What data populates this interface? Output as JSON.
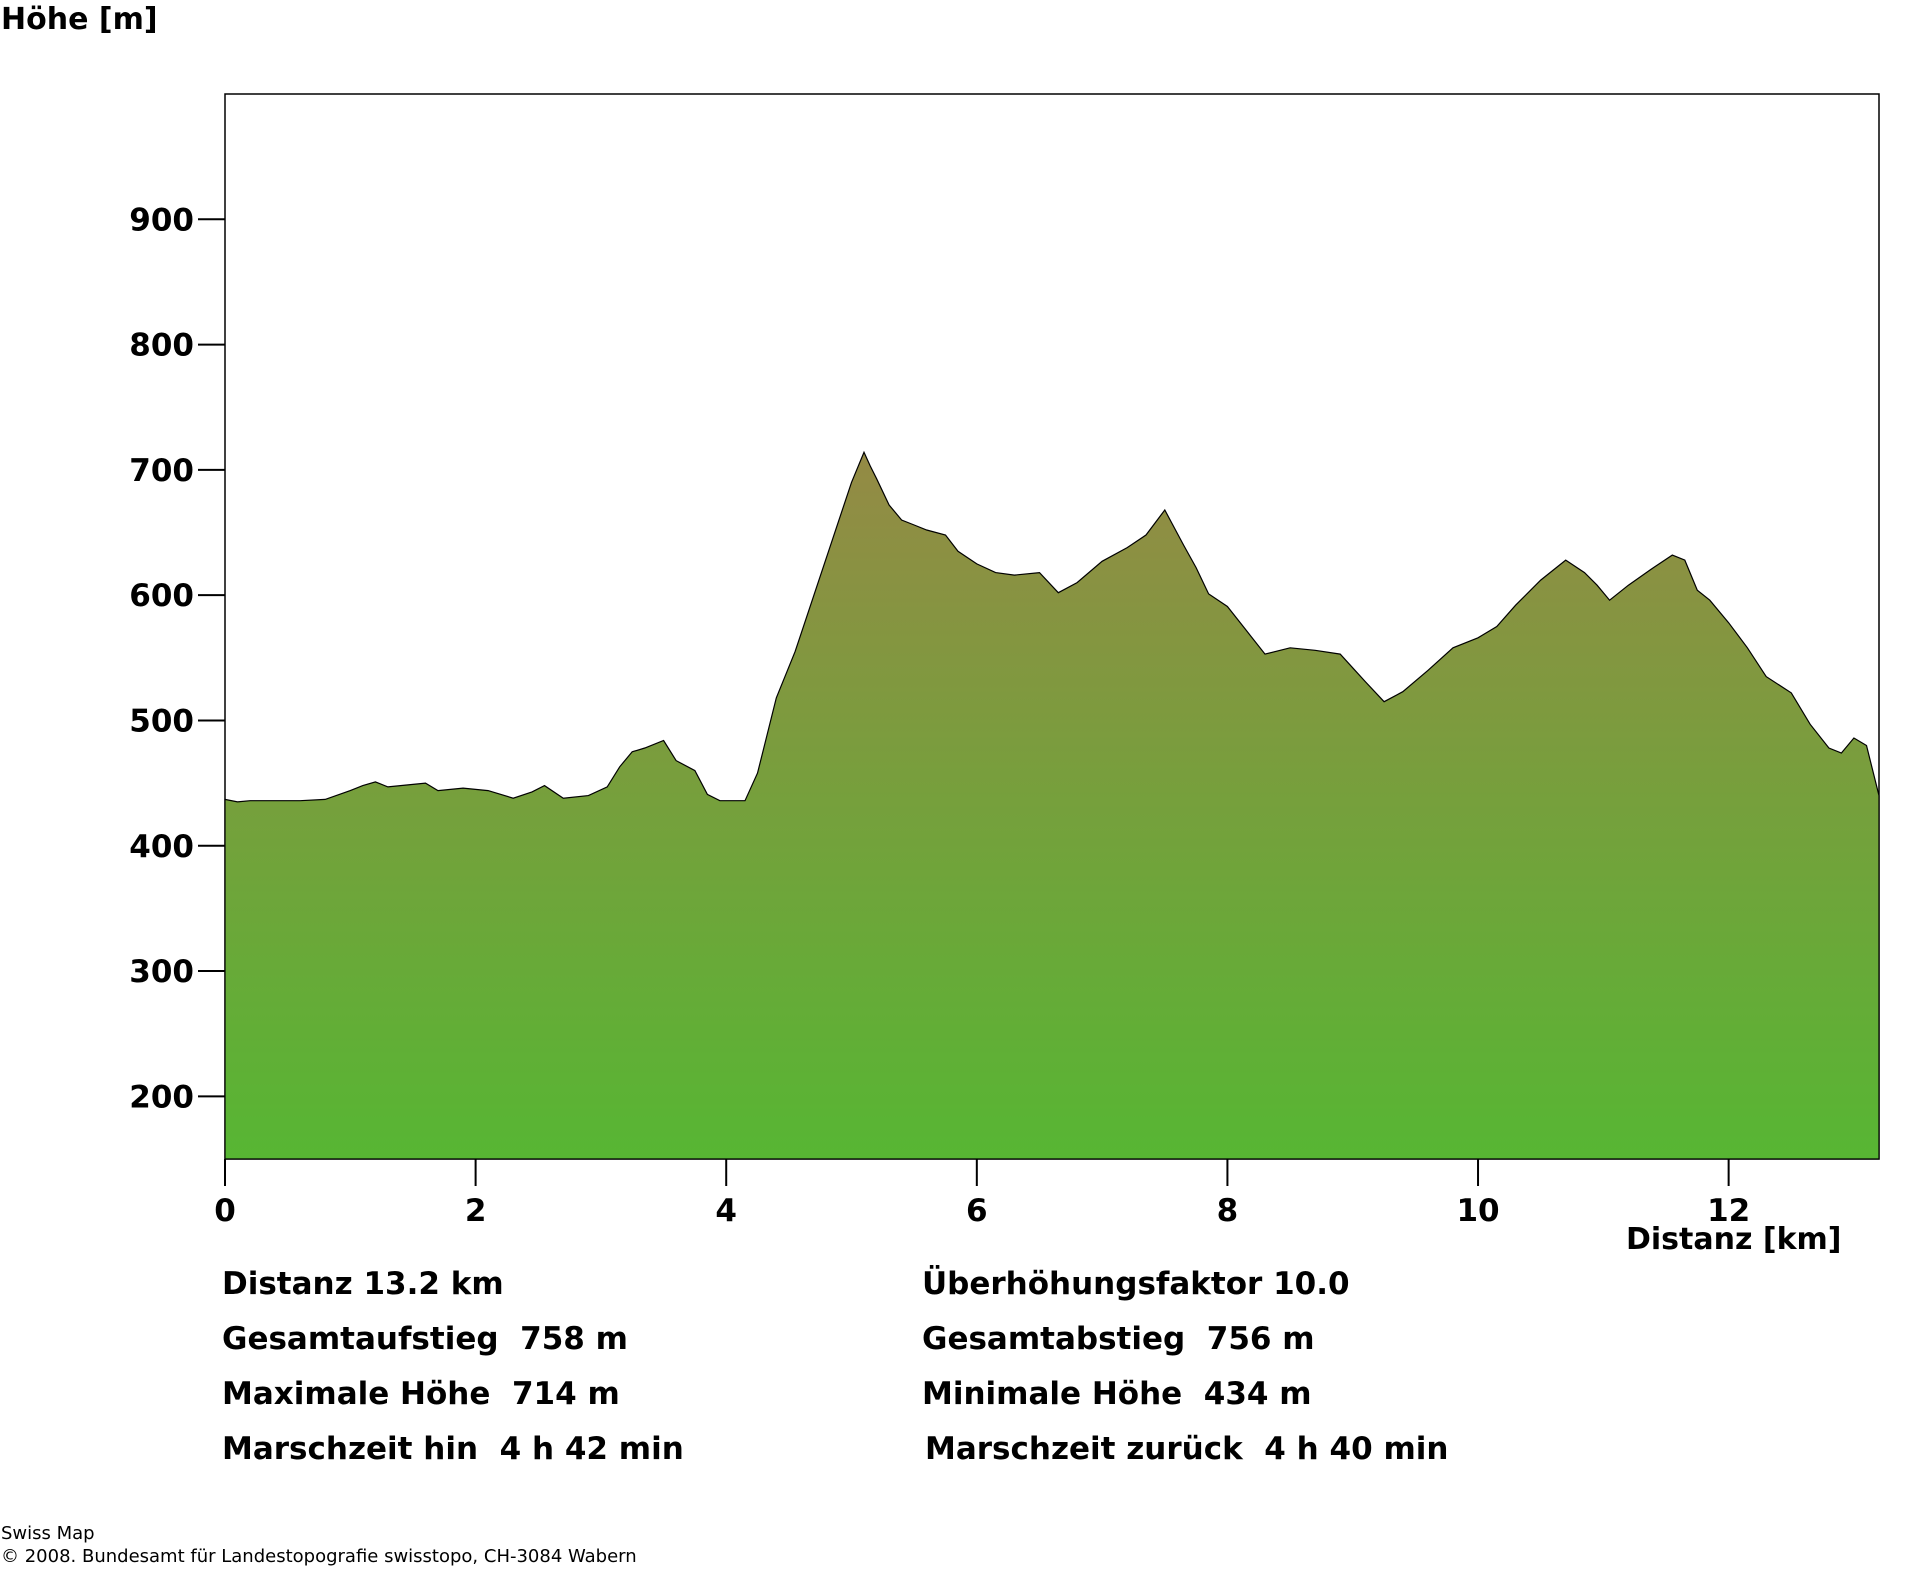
{
  "chart_data": {
    "type": "area",
    "ylabel": "Höhe [m]",
    "xlabel": "Distanz [km]",
    "xlim": [
      0,
      13.2
    ],
    "ylim": [
      150,
      1000
    ],
    "yticks": [
      200,
      300,
      400,
      500,
      600,
      700,
      800,
      900
    ],
    "xticks": [
      0,
      2,
      4,
      6,
      8,
      10,
      12
    ],
    "x": [
      0,
      0.1,
      0.2,
      0.4,
      0.6,
      0.8,
      1.0,
      1.1,
      1.2,
      1.3,
      1.5,
      1.6,
      1.7,
      1.9,
      2.1,
      2.3,
      2.45,
      2.55,
      2.7,
      2.9,
      3.05,
      3.15,
      3.25,
      3.35,
      3.5,
      3.6,
      3.75,
      3.85,
      3.95,
      4.15,
      4.25,
      4.3,
      4.4,
      4.55,
      4.7,
      4.85,
      5.0,
      5.1,
      5.15,
      5.2,
      5.3,
      5.4,
      5.5,
      5.6,
      5.75,
      5.85,
      6.0,
      6.15,
      6.3,
      6.5,
      6.65,
      6.8,
      7.0,
      7.2,
      7.35,
      7.5,
      7.65,
      7.75,
      7.85,
      8.0,
      8.15,
      8.3,
      8.5,
      8.7,
      8.9,
      9.0,
      9.1,
      9.25,
      9.4,
      9.6,
      9.8,
      10.0,
      10.15,
      10.3,
      10.5,
      10.7,
      10.85,
      10.95,
      11.05,
      11.2,
      11.4,
      11.55,
      11.65,
      11.75,
      11.85,
      12.0,
      12.15,
      12.3,
      12.5,
      12.65,
      12.8,
      12.9,
      13.0,
      13.1,
      13.2
    ],
    "y": [
      437,
      435,
      436,
      436,
      436,
      437,
      444,
      448,
      451,
      447,
      449,
      450,
      444,
      446,
      444,
      438,
      443,
      448,
      438,
      440,
      447,
      463,
      475,
      478,
      484,
      468,
      460,
      441,
      436,
      436,
      458,
      478,
      518,
      555,
      600,
      645,
      690,
      714,
      703,
      693,
      672,
      660,
      656,
      652,
      648,
      635,
      625,
      618,
      616,
      618,
      602,
      610,
      627,
      638,
      648,
      668,
      640,
      622,
      601,
      591,
      572,
      553,
      558,
      556,
      553,
      542,
      531,
      515,
      523,
      540,
      558,
      566,
      575,
      592,
      612,
      628,
      618,
      608,
      596,
      608,
      622,
      632,
      628,
      604,
      596,
      578,
      558,
      535,
      522,
      497,
      478,
      474,
      486,
      480,
      440
    ]
  },
  "stats": {
    "distanz": "Distanz 13.2 km",
    "ueberhoehung": "Überhöhungsfaktor 10.0",
    "aufstieg": "Gesamtaufstieg  758 m",
    "abstieg": "Gesamtabstieg  756 m",
    "max_hoehe": "Maximale Höhe  714 m",
    "min_hoehe": "Minimale Höhe  434 m",
    "zeit_hin": "Marschzeit hin  4 h 42 min",
    "zeit_zurueck": "Marschzeit zurück  4 h 40 min"
  },
  "footer": {
    "line1": "Swiss Map",
    "line2": "© 2008. Bundesamt für Landestopografie swisstopo, CH-3084 Wabern"
  },
  "colors": {
    "fill_top": "#948a45",
    "fill_bottom": "#57b633",
    "outline": "#000000"
  }
}
